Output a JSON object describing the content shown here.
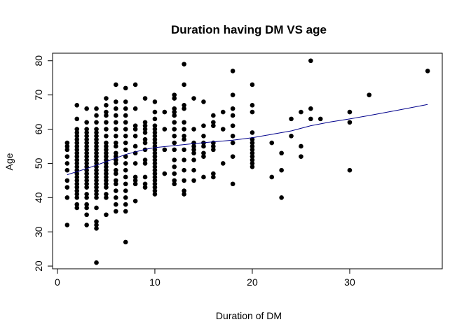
{
  "chart_data": {
    "type": "scatter",
    "title": "Duration having DM VS age",
    "xlabel": "Duration of DM",
    "ylabel": "Age",
    "xlim": [
      -0.5,
      39.5
    ],
    "ylim": [
      19.2,
      82.2
    ],
    "x_ticks": [
      0,
      10,
      20,
      30
    ],
    "y_ticks": [
      20,
      30,
      40,
      50,
      60,
      70,
      80
    ],
    "grid": false,
    "legend": "none",
    "colors": {
      "points": "#000000",
      "trend": "#00008b"
    },
    "points": [
      [
        1,
        32
      ],
      [
        1,
        40
      ],
      [
        1,
        43
      ],
      [
        1,
        45
      ],
      [
        1,
        48
      ],
      [
        1,
        50
      ],
      [
        1,
        52
      ],
      [
        1,
        54
      ],
      [
        1,
        55
      ],
      [
        1,
        56
      ],
      [
        2,
        37
      ],
      [
        2,
        38
      ],
      [
        2,
        40
      ],
      [
        2,
        41
      ],
      [
        2,
        42
      ],
      [
        2,
        43
      ],
      [
        2,
        44
      ],
      [
        2,
        45
      ],
      [
        2,
        46
      ],
      [
        2,
        47
      ],
      [
        2,
        48
      ],
      [
        2,
        49
      ],
      [
        2,
        50
      ],
      [
        2,
        51
      ],
      [
        2,
        52
      ],
      [
        2,
        53
      ],
      [
        2,
        54
      ],
      [
        2,
        55
      ],
      [
        2,
        56
      ],
      [
        2,
        57
      ],
      [
        2,
        58
      ],
      [
        2,
        59
      ],
      [
        2,
        60
      ],
      [
        2,
        63
      ],
      [
        2,
        67
      ],
      [
        3,
        32
      ],
      [
        3,
        35
      ],
      [
        3,
        37
      ],
      [
        3,
        38
      ],
      [
        3,
        40
      ],
      [
        3,
        41
      ],
      [
        3,
        43
      ],
      [
        3,
        44
      ],
      [
        3,
        45
      ],
      [
        3,
        46
      ],
      [
        3,
        47
      ],
      [
        3,
        48
      ],
      [
        3,
        49
      ],
      [
        3,
        50
      ],
      [
        3,
        51
      ],
      [
        3,
        52
      ],
      [
        3,
        53
      ],
      [
        3,
        54
      ],
      [
        3,
        55
      ],
      [
        3,
        56
      ],
      [
        3,
        57
      ],
      [
        3,
        58
      ],
      [
        3,
        59
      ],
      [
        3,
        60
      ],
      [
        3,
        62
      ],
      [
        3,
        66
      ],
      [
        4,
        21
      ],
      [
        4,
        31
      ],
      [
        4,
        32
      ],
      [
        4,
        33
      ],
      [
        4,
        37
      ],
      [
        4,
        40
      ],
      [
        4,
        41
      ],
      [
        4,
        42
      ],
      [
        4,
        43
      ],
      [
        4,
        44
      ],
      [
        4,
        45
      ],
      [
        4,
        46
      ],
      [
        4,
        47
      ],
      [
        4,
        48
      ],
      [
        4,
        49
      ],
      [
        4,
        50
      ],
      [
        4,
        51
      ],
      [
        4,
        52
      ],
      [
        4,
        53
      ],
      [
        4,
        54
      ],
      [
        4,
        55
      ],
      [
        4,
        56
      ],
      [
        4,
        57
      ],
      [
        4,
        58
      ],
      [
        4,
        59
      ],
      [
        4,
        60
      ],
      [
        4,
        62
      ],
      [
        4,
        64
      ],
      [
        4,
        66
      ],
      [
        5,
        35
      ],
      [
        5,
        40
      ],
      [
        5,
        41
      ],
      [
        5,
        43
      ],
      [
        5,
        44
      ],
      [
        5,
        45
      ],
      [
        5,
        46
      ],
      [
        5,
        47
      ],
      [
        5,
        48
      ],
      [
        5,
        49
      ],
      [
        5,
        50
      ],
      [
        5,
        51
      ],
      [
        5,
        52
      ],
      [
        5,
        53
      ],
      [
        5,
        54
      ],
      [
        5,
        55
      ],
      [
        5,
        56
      ],
      [
        5,
        58
      ],
      [
        5,
        60
      ],
      [
        5,
        62
      ],
      [
        5,
        64
      ],
      [
        5,
        65
      ],
      [
        5,
        67
      ],
      [
        5,
        69
      ],
      [
        6,
        36
      ],
      [
        6,
        38
      ],
      [
        6,
        40
      ],
      [
        6,
        42
      ],
      [
        6,
        44
      ],
      [
        6,
        45
      ],
      [
        6,
        47
      ],
      [
        6,
        48
      ],
      [
        6,
        50
      ],
      [
        6,
        51
      ],
      [
        6,
        52
      ],
      [
        6,
        53
      ],
      [
        6,
        55
      ],
      [
        6,
        56
      ],
      [
        6,
        58
      ],
      [
        6,
        60
      ],
      [
        6,
        62
      ],
      [
        6,
        64
      ],
      [
        6,
        66
      ],
      [
        6,
        68
      ],
      [
        6,
        73
      ],
      [
        7,
        27
      ],
      [
        7,
        36
      ],
      [
        7,
        38
      ],
      [
        7,
        40
      ],
      [
        7,
        42
      ],
      [
        7,
        44
      ],
      [
        7,
        46
      ],
      [
        7,
        48
      ],
      [
        7,
        50
      ],
      [
        7,
        52
      ],
      [
        7,
        54
      ],
      [
        7,
        56
      ],
      [
        7,
        58
      ],
      [
        7,
        60
      ],
      [
        7,
        62
      ],
      [
        7,
        64
      ],
      [
        7,
        66
      ],
      [
        7,
        68
      ],
      [
        7,
        72
      ],
      [
        8,
        39
      ],
      [
        8,
        44
      ],
      [
        8,
        45
      ],
      [
        8,
        46
      ],
      [
        8,
        50
      ],
      [
        8,
        53
      ],
      [
        8,
        55
      ],
      [
        8,
        58
      ],
      [
        8,
        60
      ],
      [
        8,
        61
      ],
      [
        8,
        66
      ],
      [
        8,
        73
      ],
      [
        9,
        43
      ],
      [
        9,
        44
      ],
      [
        9,
        46
      ],
      [
        9,
        50
      ],
      [
        9,
        51
      ],
      [
        9,
        54
      ],
      [
        9,
        56
      ],
      [
        9,
        57
      ],
      [
        9,
        59
      ],
      [
        9,
        60
      ],
      [
        9,
        61
      ],
      [
        9,
        62
      ],
      [
        9,
        69
      ],
      [
        10,
        41
      ],
      [
        10,
        42
      ],
      [
        10,
        43
      ],
      [
        10,
        44
      ],
      [
        10,
        45
      ],
      [
        10,
        46
      ],
      [
        10,
        47
      ],
      [
        10,
        48
      ],
      [
        10,
        49
      ],
      [
        10,
        50
      ],
      [
        10,
        51
      ],
      [
        10,
        52
      ],
      [
        10,
        53
      ],
      [
        10,
        54
      ],
      [
        10,
        55
      ],
      [
        10,
        56
      ],
      [
        10,
        57
      ],
      [
        10,
        58
      ],
      [
        10,
        59
      ],
      [
        10,
        60
      ],
      [
        10,
        61
      ],
      [
        10,
        63
      ],
      [
        10,
        65
      ],
      [
        10,
        68
      ],
      [
        11,
        47
      ],
      [
        11,
        54
      ],
      [
        11,
        60
      ],
      [
        11,
        65
      ],
      [
        12,
        44
      ],
      [
        12,
        45
      ],
      [
        12,
        47
      ],
      [
        12,
        49
      ],
      [
        12,
        51
      ],
      [
        12,
        54
      ],
      [
        12,
        56
      ],
      [
        12,
        58
      ],
      [
        12,
        60
      ],
      [
        12,
        62
      ],
      [
        12,
        64
      ],
      [
        12,
        65
      ],
      [
        12,
        66
      ],
      [
        12,
        69
      ],
      [
        12,
        70
      ],
      [
        13,
        41
      ],
      [
        13,
        42
      ],
      [
        13,
        45
      ],
      [
        13,
        48
      ],
      [
        13,
        51
      ],
      [
        13,
        54
      ],
      [
        13,
        57
      ],
      [
        13,
        58
      ],
      [
        13,
        60
      ],
      [
        13,
        62
      ],
      [
        13,
        66
      ],
      [
        13,
        67
      ],
      [
        13,
        73
      ],
      [
        13,
        79
      ],
      [
        14,
        45
      ],
      [
        14,
        48
      ],
      [
        14,
        51
      ],
      [
        14,
        53
      ],
      [
        14,
        54
      ],
      [
        14,
        55
      ],
      [
        14,
        56
      ],
      [
        14,
        60
      ],
      [
        14,
        69
      ],
      [
        15,
        46
      ],
      [
        15,
        52
      ],
      [
        15,
        53
      ],
      [
        15,
        55
      ],
      [
        15,
        56
      ],
      [
        15,
        58
      ],
      [
        15,
        61
      ],
      [
        15,
        68
      ],
      [
        16,
        46
      ],
      [
        16,
        47
      ],
      [
        16,
        54
      ],
      [
        16,
        55
      ],
      [
        16,
        56
      ],
      [
        16,
        61
      ],
      [
        16,
        62
      ],
      [
        16,
        64
      ],
      [
        17,
        50
      ],
      [
        17,
        60
      ],
      [
        17,
        65
      ],
      [
        18,
        44
      ],
      [
        18,
        52
      ],
      [
        18,
        56
      ],
      [
        18,
        58
      ],
      [
        18,
        61
      ],
      [
        18,
        64
      ],
      [
        18,
        66
      ],
      [
        18,
        70
      ],
      [
        18,
        77
      ],
      [
        20,
        49
      ],
      [
        20,
        50
      ],
      [
        20,
        51
      ],
      [
        20,
        52
      ],
      [
        20,
        53
      ],
      [
        20,
        54
      ],
      [
        20,
        55
      ],
      [
        20,
        56
      ],
      [
        20,
        57
      ],
      [
        20,
        59
      ],
      [
        20,
        65
      ],
      [
        20,
        67
      ],
      [
        20,
        73
      ],
      [
        22,
        46
      ],
      [
        22,
        56
      ],
      [
        23,
        40
      ],
      [
        23,
        48
      ],
      [
        23,
        53
      ],
      [
        24,
        58
      ],
      [
        24,
        63
      ],
      [
        25,
        52
      ],
      [
        25,
        55
      ],
      [
        25,
        65
      ],
      [
        26,
        63
      ],
      [
        26,
        66
      ],
      [
        26,
        80
      ],
      [
        27,
        63
      ],
      [
        30,
        48
      ],
      [
        30,
        62
      ],
      [
        30,
        65
      ],
      [
        32,
        70
      ],
      [
        38,
        77
      ]
    ],
    "trend": [
      [
        1,
        46.7
      ],
      [
        3,
        48.5
      ],
      [
        5,
        50.5
      ],
      [
        7,
        52.6
      ],
      [
        9,
        54.1
      ],
      [
        10,
        54.6
      ],
      [
        12,
        55.2
      ],
      [
        14,
        55.8
      ],
      [
        16,
        56.3
      ],
      [
        18,
        56.8
      ],
      [
        20,
        57.5
      ],
      [
        22,
        58.5
      ],
      [
        24,
        59.5
      ],
      [
        26,
        61.0
      ],
      [
        28,
        62.1
      ],
      [
        30,
        63.0
      ],
      [
        32,
        64.0
      ],
      [
        35,
        65.6
      ],
      [
        38,
        67.2
      ]
    ]
  }
}
